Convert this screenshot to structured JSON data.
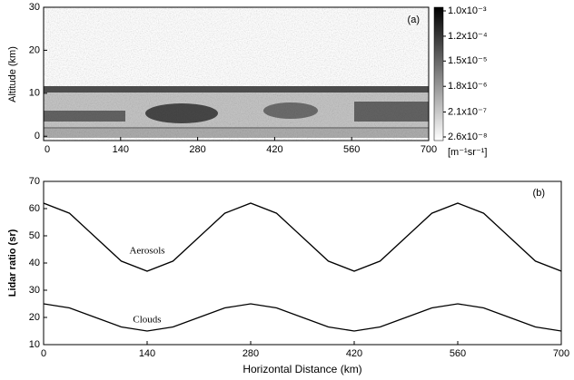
{
  "chart_data": [
    {
      "type": "heatmap",
      "annotation": "(a)",
      "ylabel": "Altitude (km)",
      "xlim": [
        0,
        700
      ],
      "xticks": [
        0,
        140,
        280,
        420,
        560,
        700
      ],
      "ylim": [
        -1,
        30
      ],
      "yticks": [
        0,
        10,
        20,
        30
      ],
      "colorbar": {
        "scale": "log",
        "lim": [
          2.6e-08,
          0.001
        ],
        "unit": "[m⁻¹sr⁻¹]",
        "ticks": [
          {
            "value": 0.001,
            "label": "1.0x10⁻³"
          },
          {
            "value": 0.00012,
            "label": "1.2x10⁻⁴"
          },
          {
            "value": 1.5e-05,
            "label": "1.5x10⁻⁵"
          },
          {
            "value": 1.8e-06,
            "label": "1.8x10⁻⁶"
          },
          {
            "value": 2.1e-07,
            "label": "2.1x10⁻⁷"
          },
          {
            "value": 2.6e-08,
            "label": "2.6x10⁻⁸"
          }
        ]
      }
    },
    {
      "type": "line",
      "annotation": "(b)",
      "xlabel": "Horizontal Distance (km)",
      "ylabel": "Lidar ratio (sr)",
      "xlim": [
        0,
        700
      ],
      "xticks": [
        0,
        140,
        280,
        420,
        560,
        700
      ],
      "ylim": [
        10,
        70
      ],
      "yticks": [
        10,
        20,
        30,
        40,
        50,
        60,
        70
      ],
      "x": [
        0,
        35,
        70,
        105,
        140,
        175,
        210,
        245,
        280,
        315,
        350,
        385,
        420,
        455,
        490,
        525,
        560,
        595,
        630,
        665,
        700
      ],
      "series": [
        {
          "name": "Aerosols",
          "color": "#000000",
          "values": [
            62,
            58.3,
            49.5,
            40.7,
            37,
            40.7,
            49.5,
            58.3,
            62,
            58.3,
            49.5,
            40.7,
            37,
            40.7,
            49.5,
            58.3,
            62,
            58.3,
            49.5,
            40.7,
            37
          ]
        },
        {
          "name": "Clouds",
          "color": "#000000",
          "values": [
            25,
            23.5,
            20,
            16.5,
            15,
            16.5,
            20,
            23.5,
            25,
            23.5,
            20,
            16.5,
            15,
            16.5,
            20,
            23.5,
            25,
            23.5,
            20,
            16.5,
            15
          ]
        }
      ]
    }
  ]
}
